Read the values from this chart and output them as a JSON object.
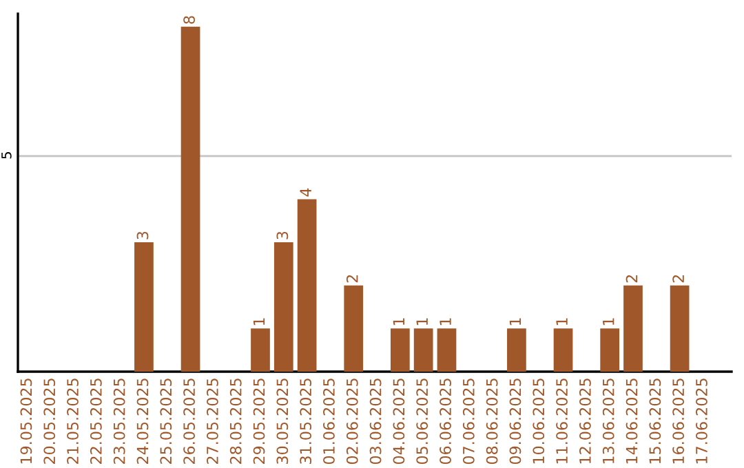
{
  "chart_data": {
    "type": "bar",
    "categories": [
      "19.05.2025",
      "20.05.2025",
      "21.05.2025",
      "22.05.2025",
      "23.05.2025",
      "24.05.2025",
      "25.05.2025",
      "26.05.2025",
      "27.05.2025",
      "28.05.2025",
      "29.05.2025",
      "30.05.2025",
      "31.05.2025",
      "01.06.2025",
      "02.06.2025",
      "03.06.2025",
      "04.06.2025",
      "05.06.2025",
      "06.06.2025",
      "07.06.2025",
      "08.06.2025",
      "09.06.2025",
      "10.06.2025",
      "11.06.2025",
      "12.06.2025",
      "13.06.2025",
      "14.06.2025",
      "15.06.2025",
      "16.06.2025",
      "17.06.2025"
    ],
    "values": [
      0,
      0,
      0,
      0,
      0,
      3,
      0,
      8,
      0,
      0,
      1,
      3,
      4,
      0,
      2,
      0,
      1,
      1,
      1,
      0,
      0,
      1,
      0,
      1,
      0,
      1,
      2,
      0,
      2,
      0
    ],
    "value_labels": [
      null,
      null,
      null,
      null,
      null,
      "3",
      null,
      "8",
      null,
      null,
      "1",
      "3",
      "4",
      null,
      "2",
      null,
      "1",
      "1",
      "1",
      null,
      null,
      "1",
      null,
      "1",
      null,
      "1",
      "2",
      null,
      "2",
      null
    ],
    "color": "#a0582a",
    "ylim": [
      0,
      8.3
    ],
    "yticks": [
      5
    ],
    "grid": "y"
  }
}
